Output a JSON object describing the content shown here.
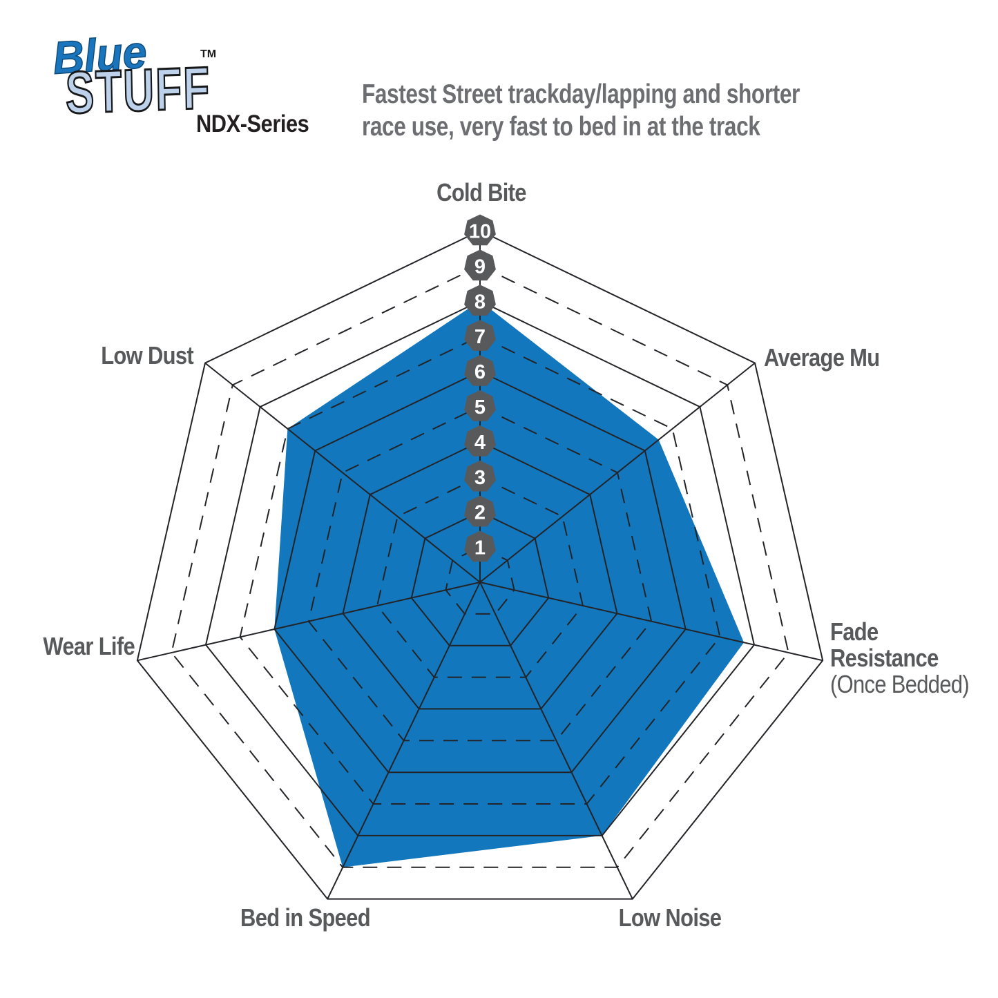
{
  "logo": {
    "brand_line1": "Blue",
    "brand_line2": "STUFF",
    "trademark": "TM",
    "series": "NDX-Series"
  },
  "header": {
    "description_line1": "Fastest Street trackday/lapping and shorter",
    "description_line2": "race use, very fast to bed in at the track"
  },
  "chart_data": {
    "type": "radar",
    "title": "BlueStuff NDX-Series brake pad performance ratings",
    "scale": {
      "min": 0,
      "max": 10,
      "step": 1,
      "tick_labels": [
        "1",
        "2",
        "3",
        "4",
        "5",
        "6",
        "7",
        "8",
        "9",
        "10"
      ]
    },
    "grid": {
      "rings": 10,
      "even_ring_style": "solid",
      "odd_ring_style": "dashed",
      "spokes": 7,
      "legend_position": "none"
    },
    "categories": [
      "Cold Bite",
      "Average Mu",
      "Fade Resistance (Once Bedded)",
      "Low Noise",
      "Bed in Speed",
      "Wear Life",
      "Low Dust"
    ],
    "series": [
      {
        "name": "BlueStuff NDX-Series",
        "values": [
          8,
          6.5,
          7.7,
          8,
          9,
          6,
          7
        ]
      }
    ],
    "axes": [
      {
        "id": "cold-bite",
        "label": "Cold Bite",
        "value": 8
      },
      {
        "id": "average-mu",
        "label": "Average Mu",
        "value": 6.5
      },
      {
        "id": "fade-resistance",
        "label": "Fade Resistance",
        "sublabel": "(Once Bedded)",
        "value": 7.7
      },
      {
        "id": "low-noise",
        "label": "Low Noise",
        "value": 8
      },
      {
        "id": "bed-in-speed",
        "label": "Bed in Speed",
        "value": 9
      },
      {
        "id": "wear-life",
        "label": "Wear Life",
        "value": 6
      },
      {
        "id": "low-dust",
        "label": "Low Dust",
        "value": 7
      }
    ],
    "colors": {
      "fill": "#1277bd",
      "grid": "#232428",
      "badge_fill": "#58595b",
      "badge_text": "#ffffff",
      "label_text": "#58595b",
      "title_text": "#6d6e71",
      "logo_blue": "#1b75bc",
      "logo_light_blue": "#bdd2ea",
      "series_text": "#231f20"
    }
  }
}
